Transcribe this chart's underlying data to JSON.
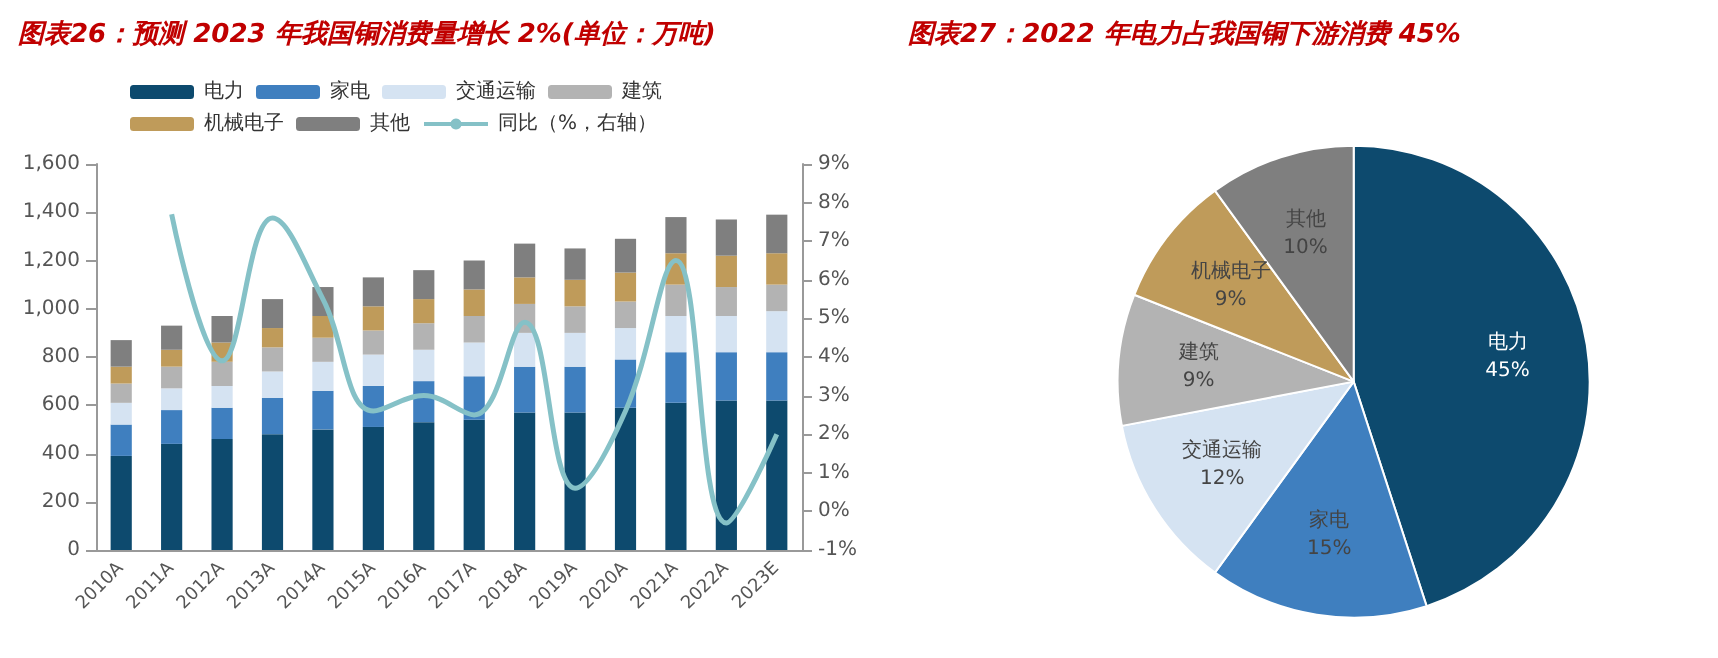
{
  "chart_data": [
    {
      "type": "bar",
      "title": "图表26：预测 2023 年我国铜消费量增长 2%(单位：万吨)",
      "stacked": true,
      "categories": [
        "2010A",
        "2011A",
        "2012A",
        "2013A",
        "2014A",
        "2015A",
        "2016A",
        "2017A",
        "2018A",
        "2019A",
        "2020A",
        "2021A",
        "2022A",
        "2023E"
      ],
      "series": [
        {
          "name": "电力",
          "color": "#0d4a6e",
          "values": [
            390,
            440,
            460,
            480,
            500,
            510,
            530,
            540,
            570,
            570,
            590,
            610,
            620,
            620
          ]
        },
        {
          "name": "家电",
          "color": "#3f7fbf",
          "values": [
            130,
            140,
            130,
            150,
            160,
            170,
            170,
            180,
            190,
            190,
            200,
            210,
            200,
            200
          ]
        },
        {
          "name": "交通运输",
          "color": "#d5e3f2",
          "values": [
            90,
            90,
            90,
            110,
            120,
            130,
            130,
            140,
            140,
            140,
            130,
            150,
            150,
            170
          ]
        },
        {
          "name": "建筑",
          "color": "#b3b3b3",
          "values": [
            80,
            90,
            100,
            100,
            100,
            100,
            110,
            110,
            120,
            110,
            110,
            130,
            120,
            110
          ]
        },
        {
          "name": "机械电子",
          "color": "#bf9b5a",
          "values": [
            70,
            70,
            80,
            80,
            90,
            100,
            100,
            110,
            110,
            110,
            120,
            130,
            130,
            130
          ]
        },
        {
          "name": "其他",
          "color": "#7f7f7f",
          "values": [
            110,
            100,
            110,
            120,
            120,
            120,
            120,
            120,
            140,
            130,
            140,
            150,
            150,
            160
          ]
        },
        {
          "name": "同比（%，右轴）",
          "type": "line",
          "axis": "y2",
          "color": "#85c1c7",
          "values": [
            null,
            7.7,
            3.9,
            7.6,
            5.5,
            2.6,
            3.0,
            2.5,
            4.9,
            0.6,
            2.6,
            6.5,
            -0.3,
            2.0
          ]
        }
      ],
      "ylim": [
        0,
        1600
      ],
      "yticks": [
        0,
        200,
        400,
        600,
        800,
        {
          "value": 1000,
          "label": "1,000"
        },
        {
          "value": 1200,
          "label": "1,200"
        },
        {
          "value": 1400,
          "label": "1,400"
        },
        {
          "value": 1600,
          "label": "1,600"
        }
      ],
      "y2lim": [
        -1,
        9
      ],
      "y2ticks": [
        {
          "value": -1,
          "label": "-1%"
        },
        {
          "value": 0,
          "label": "0%"
        },
        {
          "value": 1,
          "label": "1%"
        },
        {
          "value": 2,
          "label": "2%"
        },
        {
          "value": 3,
          "label": "3%"
        },
        {
          "value": 4,
          "label": "4%"
        },
        {
          "value": 5,
          "label": "5%"
        },
        {
          "value": 6,
          "label": "6%"
        },
        {
          "value": 7,
          "label": "7%"
        },
        {
          "value": 8,
          "label": "8%"
        },
        {
          "value": 9,
          "label": "9%"
        }
      ],
      "grid": false,
      "legend": "top",
      "marker": "none"
    },
    {
      "type": "pie",
      "title": "图表27：2022 年电力占我国铜下游消费 45%",
      "categories": [
        "电力",
        "家电",
        "交通运输",
        "建筑",
        "机械电子",
        "其他"
      ],
      "values": [
        45,
        15,
        12,
        9,
        9,
        10
      ],
      "colors": [
        "#0d4a6e",
        "#3f7fbf",
        "#d5e3f2",
        "#b3b3b3",
        "#bf9b5a",
        "#7f7f7f"
      ],
      "value_labels": [
        "45%",
        "15%",
        "12%",
        "9%",
        "9%",
        "10%"
      ]
    }
  ]
}
